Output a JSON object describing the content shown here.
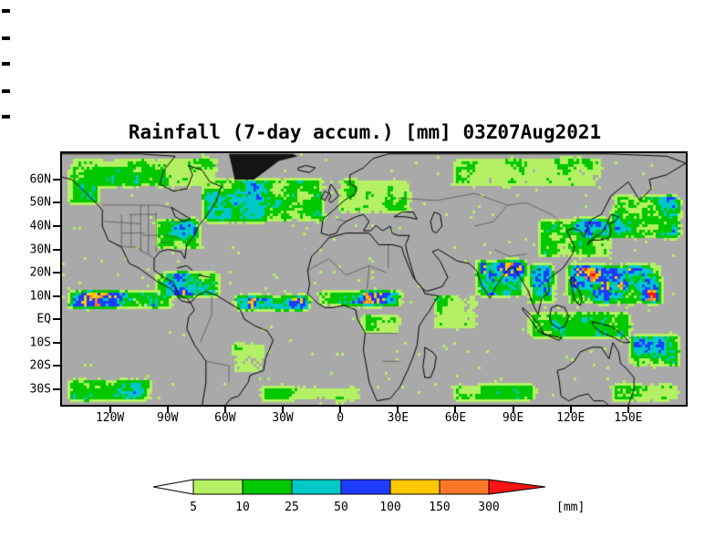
{
  "chart_data": {
    "type": "heatmap",
    "title": "Rainfall (7-day accum.) [mm] 03Z07Aug2021",
    "variable": "7-day accumulated rainfall",
    "valid_time": "03Z07Aug2021",
    "units": "mm",
    "projection": "latlon",
    "lon_range": [
      -145,
      180
    ],
    "lat_range": [
      -36.7,
      71.3
    ],
    "background_color": "#a9a9a9",
    "grid": false,
    "xticks": [
      {
        "label": "120W",
        "lon": -120
      },
      {
        "label": "90W",
        "lon": -90
      },
      {
        "label": "60W",
        "lon": -60
      },
      {
        "label": "30W",
        "lon": -30
      },
      {
        "label": "0",
        "lon": 0
      },
      {
        "label": "30E",
        "lon": 30
      },
      {
        "label": "60E",
        "lon": 60
      },
      {
        "label": "90E",
        "lon": 90
      },
      {
        "label": "120E",
        "lon": 120
      },
      {
        "label": "150E",
        "lon": 150
      }
    ],
    "yticks": [
      {
        "label": "60N",
        "lat": 60
      },
      {
        "label": "50N",
        "lat": 50
      },
      {
        "label": "40N",
        "lat": 40
      },
      {
        "label": "30N",
        "lat": 30
      },
      {
        "label": "20N",
        "lat": 20
      },
      {
        "label": "10N",
        "lat": 10
      },
      {
        "label": "EQ",
        "lat": 0
      },
      {
        "label": "10S",
        "lat": -10
      },
      {
        "label": "20S",
        "lat": -20
      },
      {
        "label": "30S",
        "lat": -30
      }
    ],
    "colorbar": {
      "levels": [
        5,
        10,
        25,
        50,
        100,
        150,
        300
      ],
      "below_color": "#ffffff",
      "segment_colors": [
        "#b4f064",
        "#00c800",
        "#00c8c8",
        "#1e3cff",
        "#ffc800",
        "#ff7828"
      ],
      "above_color": "#fa1414",
      "unit_label": "[mm]",
      "position": "bottom"
    },
    "rain_regions": [
      {
        "name": "east-pacific-itcz",
        "lon": [
          -145,
          -85
        ],
        "lat": [
          3,
          14
        ],
        "intensity": 0.85
      },
      {
        "name": "east-pacific-heavy-streak",
        "lon": [
          -125,
          -95
        ],
        "lat": [
          7,
          12
        ],
        "intensity": 1.0
      },
      {
        "name": "central-america-caribbean",
        "lon": [
          -100,
          -60
        ],
        "lat": [
          8,
          22
        ],
        "intensity": 0.7
      },
      {
        "name": "atlantic-itcz",
        "lon": [
          -58,
          -12
        ],
        "lat": [
          2,
          12
        ],
        "intensity": 0.75
      },
      {
        "name": "west-africa-monsoon",
        "lon": [
          -15,
          35
        ],
        "lat": [
          4,
          14
        ],
        "intensity": 0.8
      },
      {
        "name": "congo-basin",
        "lon": [
          8,
          35
        ],
        "lat": [
          -8,
          4
        ],
        "intensity": 0.45
      },
      {
        "name": "indian-ocean-itcz",
        "lon": [
          45,
          75
        ],
        "lat": [
          -6,
          12
        ],
        "intensity": 0.55
      },
      {
        "name": "india-bay-of-bengal-monsoon",
        "lon": [
          68,
          100
        ],
        "lat": [
          8,
          27
        ],
        "intensity": 0.9
      },
      {
        "name": "monsoon-heavy-core",
        "lon": [
          84,
          97
        ],
        "lat": [
          13,
          23
        ],
        "intensity": 1.0
      },
      {
        "name": "southeast-asia",
        "lon": [
          95,
          115
        ],
        "lat": [
          5,
          25
        ],
        "intensity": 0.85
      },
      {
        "name": "west-pacific",
        "lon": [
          115,
          170
        ],
        "lat": [
          5,
          25
        ],
        "intensity": 0.9
      },
      {
        "name": "west-pacific-heavy-core",
        "lon": [
          124,
          156
        ],
        "lat": [
          10,
          22
        ],
        "intensity": 1.0
      },
      {
        "name": "maritime-continent",
        "lon": [
          95,
          155
        ],
        "lat": [
          -10,
          5
        ],
        "intensity": 0.6
      },
      {
        "name": "spcz",
        "lon": [
          148,
          180
        ],
        "lat": [
          -22,
          -5
        ],
        "intensity": 0.65
      },
      {
        "name": "north-pacific-storm-track",
        "lon": [
          138,
          180
        ],
        "lat": [
          33,
          55
        ],
        "intensity": 0.7
      },
      {
        "name": "east-asia",
        "lon": [
          100,
          145
        ],
        "lat": [
          25,
          45
        ],
        "intensity": 0.65
      },
      {
        "name": "north-atlantic-storm-track",
        "lon": [
          -75,
          -5
        ],
        "lat": [
          40,
          62
        ],
        "intensity": 0.65
      },
      {
        "name": "europe",
        "lon": [
          -5,
          40
        ],
        "lat": [
          44,
          62
        ],
        "intensity": 0.5
      },
      {
        "name": "us-east",
        "lon": [
          -100,
          -70
        ],
        "lat": [
          28,
          45
        ],
        "intensity": 0.6
      },
      {
        "name": "us-atlantic-heavy",
        "lon": [
          -81,
          -71
        ],
        "lat": [
          33,
          42
        ],
        "intensity": 0.95
      },
      {
        "name": "canada-arctic",
        "lon": [
          -145,
          -60
        ],
        "lat": [
          55,
          71
        ],
        "intensity": 0.5
      },
      {
        "name": "alaska-gulf",
        "lon": [
          -145,
          -122
        ],
        "lat": [
          48,
          61
        ],
        "intensity": 0.55
      },
      {
        "name": "siberia-arctic",
        "lon": [
          55,
          140
        ],
        "lat": [
          55,
          71
        ],
        "intensity": 0.5
      },
      {
        "name": "se-pacific-storm",
        "lon": [
          -145,
          -95
        ],
        "lat": [
          -37,
          -24
        ],
        "intensity": 0.6
      },
      {
        "name": "south-atlantic-storm",
        "lon": [
          -45,
          15
        ],
        "lat": [
          -37,
          -27
        ],
        "intensity": 0.5
      },
      {
        "name": "south-indian-storm",
        "lon": [
          55,
          105
        ],
        "lat": [
          -37,
          -26
        ],
        "intensity": 0.5
      },
      {
        "name": "sacz-brazil",
        "lon": [
          -60,
          -35
        ],
        "lat": [
          -25,
          -8
        ],
        "intensity": 0.4
      },
      {
        "name": "se-australia-tasman",
        "lon": [
          138,
          180
        ],
        "lat": [
          -37,
          -26
        ],
        "intensity": 0.5
      }
    ]
  },
  "artifacts": {
    "left_edge_marks_y": [
      10,
      40,
      68,
      98,
      126
    ]
  }
}
